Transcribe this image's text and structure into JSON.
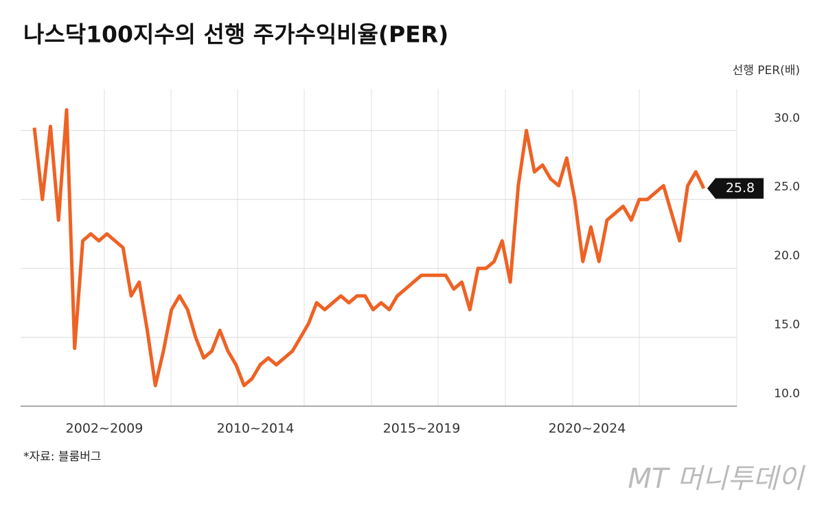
{
  "chart_data": {
    "type": "line",
    "title": "나스닥100지수의 선행 주가수익비율(PER)",
    "y_axis_label": "선행 PER(배)",
    "x_labels": [
      "2002~2009",
      "2010~2014",
      "2015~2019",
      "2020~2024"
    ],
    "source": "*자료:  블룸버그",
    "watermark": "MT 머니투데이",
    "series": [
      {
        "name": "선행 PER",
        "color": "#ee6224",
        "values": [
          30.2,
          25,
          30.3,
          23.5,
          31.5,
          14.2,
          22,
          22.5,
          22,
          22.5,
          22,
          21.5,
          18,
          19,
          15.5,
          11.5,
          14,
          17,
          18,
          17,
          15,
          13.5,
          14,
          15.5,
          14,
          13,
          11.5,
          12,
          13,
          13.5,
          13,
          13.5,
          14,
          15,
          16,
          17.5,
          17,
          17.5,
          18,
          17.5,
          18,
          18,
          17,
          17.5,
          17,
          18,
          18.5,
          19,
          19.5,
          19.5,
          19.5,
          19.5,
          18.5,
          19,
          17,
          20,
          20,
          20.5,
          22,
          19,
          26,
          30,
          27,
          27.5,
          26.5,
          26,
          28,
          25,
          20.5,
          23,
          20.5,
          23.5,
          24,
          24.5,
          23.5,
          25,
          25,
          25.5,
          26,
          24,
          22,
          26,
          27,
          25.8
        ]
      }
    ],
    "ylim": [
      10,
      33
    ],
    "yticks": [
      {
        "value": 10,
        "label": "10.0"
      },
      {
        "value": 15,
        "label": "15.0"
      },
      {
        "value": 20,
        "label": "20.0"
      },
      {
        "value": 25,
        "label": "25.0"
      },
      {
        "value": 30,
        "label": "30.0"
      }
    ],
    "grid": true
  }
}
